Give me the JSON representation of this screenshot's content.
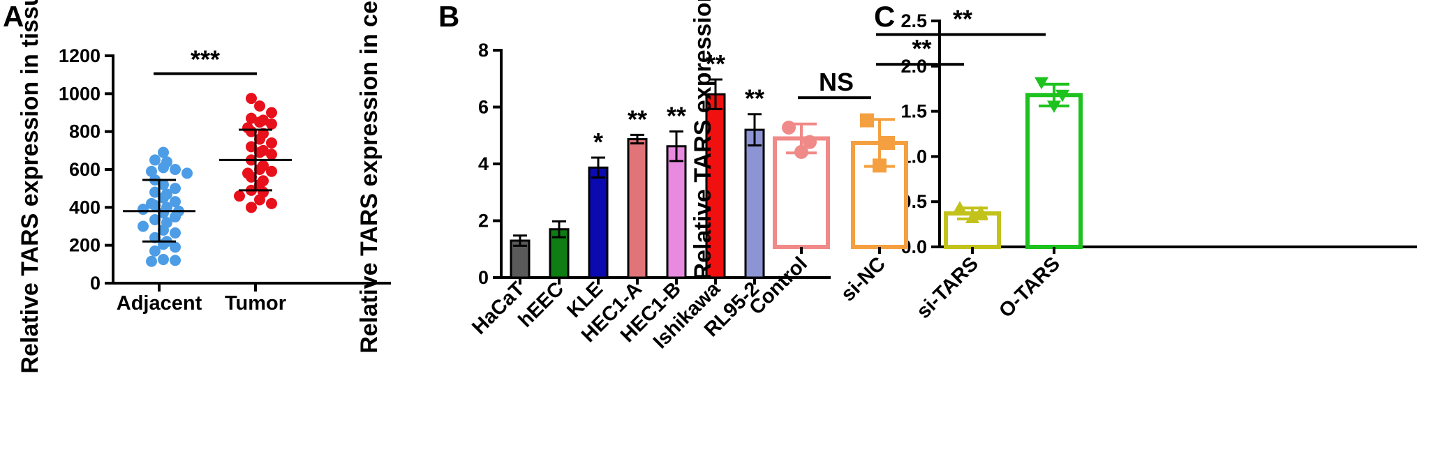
{
  "figure": {
    "panels": [
      "A",
      "B",
      "C"
    ]
  },
  "chart_data": [
    {
      "panel": "A",
      "type": "scatter",
      "ylabel": "Relative TARS expression in tissues",
      "xlabel": "",
      "ylim": [
        0,
        1200
      ],
      "yticks": [
        0,
        200,
        400,
        600,
        800,
        1000,
        1200
      ],
      "categories": [
        "Adjacent",
        "Tumor"
      ],
      "groups": [
        {
          "name": "Adjacent",
          "color": "#4d9de6",
          "mean": 380,
          "sd_low": 220,
          "sd_high": 545,
          "values": [
            690,
            650,
            640,
            610,
            600,
            590,
            580,
            545,
            520,
            500,
            480,
            470,
            450,
            430,
            420,
            410,
            400,
            390,
            380,
            370,
            350,
            335,
            320,
            300,
            280,
            265,
            240,
            220,
            205,
            190,
            170,
            125,
            120,
            115
          ]
        },
        {
          "name": "Tumor",
          "color": "#e8101a",
          "mean": 650,
          "sd_low": 490,
          "sd_high": 810,
          "values": [
            975,
            935,
            900,
            870,
            860,
            850,
            840,
            820,
            800,
            790,
            760,
            740,
            720,
            700,
            690,
            680,
            650,
            620,
            600,
            590,
            580,
            560,
            540,
            520,
            490,
            480,
            460,
            440,
            420,
            400
          ]
        }
      ],
      "annotations": [
        {
          "text": "***",
          "from": "Adjacent",
          "to": "Tumor",
          "y": 1150
        }
      ]
    },
    {
      "panel": "B",
      "type": "bar",
      "ylabel": "Relative TARS expression in cells",
      "xlabel": "",
      "ylim": [
        0,
        8
      ],
      "yticks": [
        0,
        2,
        4,
        6,
        8
      ],
      "categories": [
        "HaCaT",
        "hEEC",
        "KLE",
        "HEC1-A",
        "HEC1-B",
        "Ishikawa",
        "RL95-2"
      ],
      "values": [
        1.3,
        1.7,
        3.87,
        4.87,
        4.62,
        6.45,
        5.2
      ],
      "errors": [
        0.18,
        0.28,
        0.35,
        0.15,
        0.52,
        0.52,
        0.55
      ],
      "colors": [
        "#5a5a5a",
        "#0e7d14",
        "#0a0ab0",
        "#e07478",
        "#e88ae0",
        "#f01010",
        "#8c94d4"
      ],
      "significance": [
        "",
        "",
        "*",
        "**",
        "**",
        "**",
        "**"
      ]
    },
    {
      "panel": "C",
      "type": "bar",
      "ylabel": "Relative TARS expression",
      "xlabel": "",
      "ylim": [
        0,
        2.5
      ],
      "yticks": [
        "0.0",
        "0.5",
        "1.0",
        "1.5",
        "2.0",
        "2.5"
      ],
      "categories": [
        "Control",
        "si-NC",
        "si-TARS",
        "O-TARS"
      ],
      "values": [
        1.2,
        1.15,
        0.37,
        1.68
      ],
      "errors": [
        0.16,
        0.26,
        0.06,
        0.12
      ],
      "colors": [
        "#f08a88",
        "#f5a040",
        "#c2c21a",
        "#1ec21e"
      ],
      "points": [
        [
          1.32,
          1.16,
          1.05
        ],
        [
          1.4,
          1.15,
          0.9
        ],
        [
          0.43,
          0.38,
          0.32
        ],
        [
          1.82,
          1.68,
          1.56
        ]
      ],
      "markers": [
        "circle",
        "square",
        "triangle-up",
        "triangle-down"
      ],
      "annotations": [
        {
          "text": "NS",
          "from": "Control",
          "to": "si-NC",
          "y": 1.65
        },
        {
          "text": "**",
          "from": "si-NC",
          "to": "si-TARS",
          "y": 2.02
        },
        {
          "text": "**",
          "from": "si-NC",
          "to": "O-TARS",
          "y": 2.35
        }
      ]
    }
  ]
}
